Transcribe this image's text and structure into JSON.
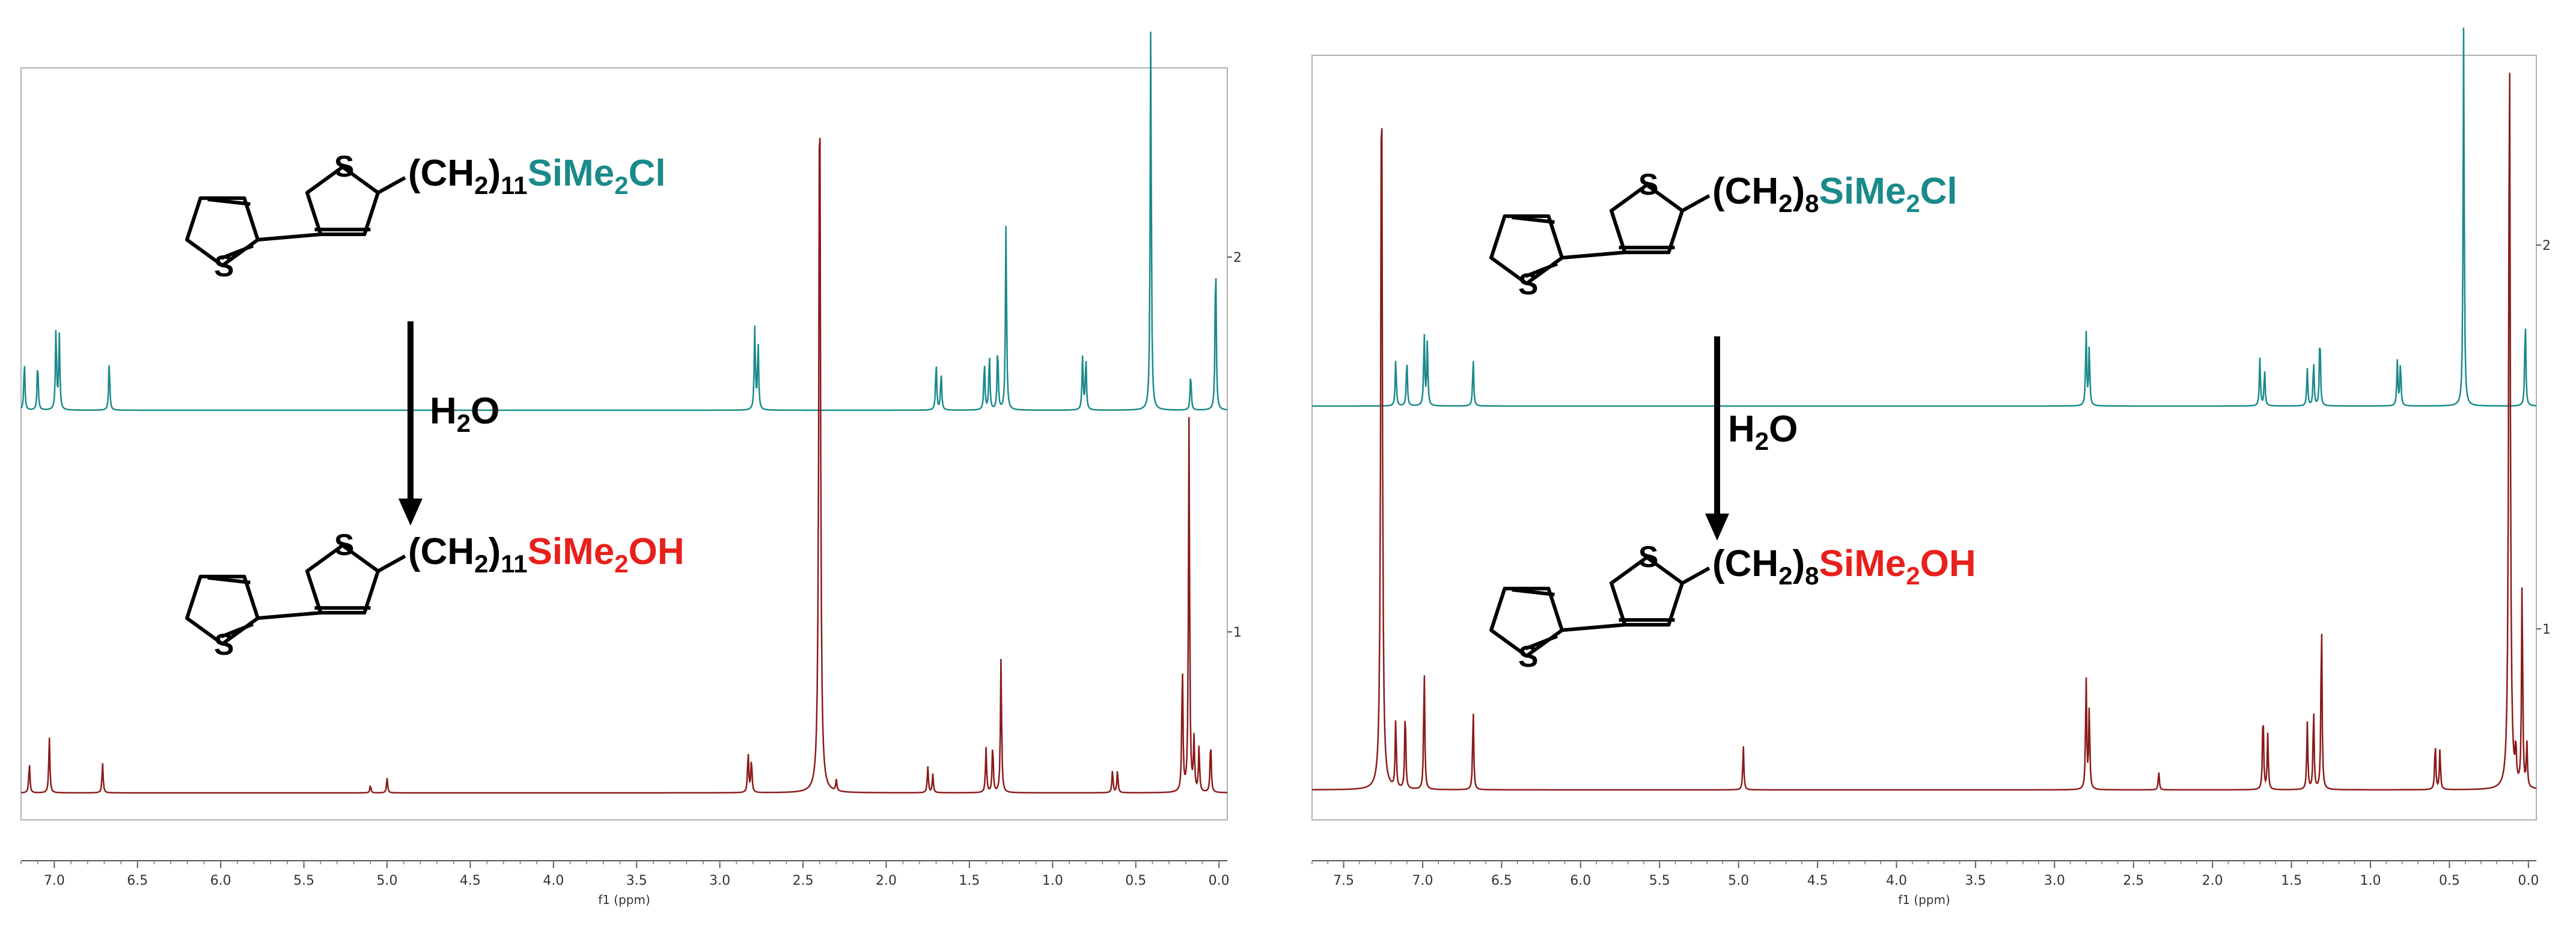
{
  "colors": {
    "chloride": "#1a8a8a",
    "silanol": "#8b1a1a",
    "silanol_text": "#e8201c",
    "frame": "#b0b0b0",
    "text": "#000000"
  },
  "chart_data": [
    {
      "type": "line",
      "subtype": "nmr-spectrum",
      "xlabel": "f1 (ppm)",
      "x_reversed": true,
      "xlim": [
        7.2,
        -0.05
      ],
      "x_ticks": [
        "7.0",
        "6.5",
        "6.0",
        "5.5",
        "5.0",
        "4.5",
        "4.0",
        "3.5",
        "3.0",
        "2.5",
        "2.0",
        "1.5",
        "1.0",
        "0.5",
        "0.0"
      ],
      "integral_ticks": [
        "2",
        "1"
      ],
      "reagent": {
        "main": "H",
        "sub": "2",
        "tail": "O"
      },
      "series": [
        {
          "role": "starting-material",
          "color": "#1a8a8a",
          "peaks": [
            {
              "ppm": 7.18,
              "h": 0.13
            },
            {
              "ppm": 7.1,
              "h": 0.13
            },
            {
              "ppm": 6.99,
              "h": 0.22
            },
            {
              "ppm": 6.97,
              "h": 0.2
            },
            {
              "ppm": 6.67,
              "h": 0.13
            },
            {
              "ppm": 2.79,
              "h": 0.22
            },
            {
              "ppm": 2.77,
              "h": 0.18
            },
            {
              "ppm": 1.7,
              "h": 0.13
            },
            {
              "ppm": 1.67,
              "h": 0.1
            },
            {
              "ppm": 1.41,
              "h": 0.13
            },
            {
              "ppm": 1.38,
              "h": 0.15
            },
            {
              "ppm": 1.33,
              "h": 0.17
            },
            {
              "ppm": 1.28,
              "h": 0.5
            },
            {
              "ppm": 0.82,
              "h": 0.14
            },
            {
              "ppm": 0.8,
              "h": 0.14
            },
            {
              "ppm": 0.41,
              "h": 1.03
            },
            {
              "ppm": 0.17,
              "h": 0.1
            },
            {
              "ppm": 0.02,
              "h": 0.42
            }
          ]
        },
        {
          "role": "hydrolysis-product",
          "color": "#8b1a1a",
          "peaks": [
            {
              "ppm": 7.15,
              "h": 0.08
            },
            {
              "ppm": 7.03,
              "h": 0.15
            },
            {
              "ppm": 6.71,
              "h": 0.08
            },
            {
              "ppm": 5.1,
              "h": 0.02
            },
            {
              "ppm": 5.0,
              "h": 0.04
            },
            {
              "ppm": 2.83,
              "h": 0.11
            },
            {
              "ppm": 2.81,
              "h": 0.09
            },
            {
              "ppm": 2.4,
              "h": 1.95
            },
            {
              "ppm": 2.3,
              "h": 0.03
            },
            {
              "ppm": 1.75,
              "h": 0.07
            },
            {
              "ppm": 1.72,
              "h": 0.05
            },
            {
              "ppm": 1.4,
              "h": 0.12
            },
            {
              "ppm": 1.36,
              "h": 0.13
            },
            {
              "ppm": 1.31,
              "h": 0.36
            },
            {
              "ppm": 0.64,
              "h": 0.06
            },
            {
              "ppm": 0.61,
              "h": 0.06
            },
            {
              "ppm": 0.22,
              "h": 0.34
            },
            {
              "ppm": 0.18,
              "h": 1.0
            },
            {
              "ppm": 0.15,
              "h": 0.14
            },
            {
              "ppm": 0.12,
              "h": 0.12
            },
            {
              "ppm": 0.05,
              "h": 0.14
            }
          ]
        }
      ],
      "reactant": {
        "prefix": "(CH",
        "sub1": "2",
        "mid": ")",
        "sub2": "11",
        "group": "SiMe",
        "sub3": "2",
        "end": "Cl"
      },
      "product": {
        "prefix": "(CH",
        "sub1": "2",
        "mid": ")",
        "sub2": "11",
        "group": "SiMe",
        "sub3": "2",
        "end": "OH"
      },
      "ring_atom": "S"
    },
    {
      "type": "line",
      "subtype": "nmr-spectrum",
      "xlabel": "f1 (ppm)",
      "x_reversed": true,
      "xlim": [
        7.7,
        -0.05
      ],
      "x_ticks": [
        "7.5",
        "7.0",
        "6.5",
        "6.0",
        "5.5",
        "5.0",
        "4.5",
        "4.0",
        "3.5",
        "3.0",
        "2.5",
        "2.0",
        "1.5",
        "1.0",
        "0.5",
        "0.0"
      ],
      "integral_ticks": [
        "2",
        "1"
      ],
      "reagent": {
        "main": "H",
        "sub": "2",
        "tail": "O"
      },
      "series": [
        {
          "role": "starting-material",
          "color": "#1a8a8a",
          "peaks": [
            {
              "ppm": 7.17,
              "h": 0.13
            },
            {
              "ppm": 7.1,
              "h": 0.13
            },
            {
              "ppm": 6.99,
              "h": 0.2
            },
            {
              "ppm": 6.97,
              "h": 0.17
            },
            {
              "ppm": 6.68,
              "h": 0.13
            },
            {
              "ppm": 2.8,
              "h": 0.2
            },
            {
              "ppm": 2.78,
              "h": 0.16
            },
            {
              "ppm": 1.7,
              "h": 0.13
            },
            {
              "ppm": 1.67,
              "h": 0.1
            },
            {
              "ppm": 1.4,
              "h": 0.1
            },
            {
              "ppm": 1.36,
              "h": 0.12
            },
            {
              "ppm": 1.32,
              "h": 0.2
            },
            {
              "ppm": 0.83,
              "h": 0.12
            },
            {
              "ppm": 0.81,
              "h": 0.12
            },
            {
              "ppm": 0.41,
              "h": 1.02
            },
            {
              "ppm": 0.02,
              "h": 0.24
            }
          ]
        },
        {
          "role": "hydrolysis-product",
          "color": "#8b1a1a",
          "peaks": [
            {
              "ppm": 7.26,
              "h": 2.0
            },
            {
              "ppm": 7.17,
              "h": 0.19
            },
            {
              "ppm": 7.11,
              "h": 0.22
            },
            {
              "ppm": 6.99,
              "h": 0.33
            },
            {
              "ppm": 6.68,
              "h": 0.22
            },
            {
              "ppm": 4.97,
              "h": 0.12
            },
            {
              "ppm": 2.8,
              "h": 0.3
            },
            {
              "ppm": 2.78,
              "h": 0.22
            },
            {
              "ppm": 2.34,
              "h": 0.05
            },
            {
              "ppm": 1.68,
              "h": 0.22
            },
            {
              "ppm": 1.65,
              "h": 0.15
            },
            {
              "ppm": 1.4,
              "h": 0.18
            },
            {
              "ppm": 1.36,
              "h": 0.22
            },
            {
              "ppm": 1.31,
              "h": 0.47
            },
            {
              "ppm": 0.59,
              "h": 0.13
            },
            {
              "ppm": 0.56,
              "h": 0.11
            },
            {
              "ppm": 0.12,
              "h": 2.0
            },
            {
              "ppm": 0.08,
              "h": 0.1
            },
            {
              "ppm": 0.04,
              "h": 0.57
            },
            {
              "ppm": 0.01,
              "h": 0.12
            }
          ]
        }
      ],
      "reactant": {
        "prefix": "(CH",
        "sub1": "2",
        "mid": ")",
        "sub2": "8",
        "group": "SiMe",
        "sub3": "2",
        "end": "Cl"
      },
      "product": {
        "prefix": "(CH",
        "sub1": "2",
        "mid": ")",
        "sub2": "8",
        "group": "SiMe",
        "sub3": "2",
        "end": "OH"
      },
      "ring_atom": "S"
    }
  ]
}
